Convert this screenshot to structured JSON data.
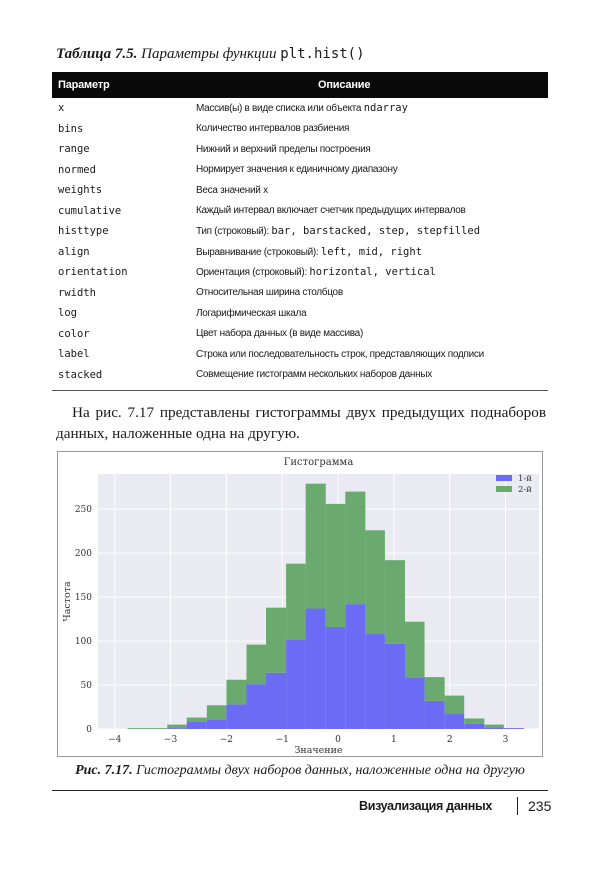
{
  "table": {
    "caption_prefix": "Таблица 7.5.",
    "caption_text": "Параметры функции",
    "caption_code": "plt.hist()",
    "headers": [
      "Параметр",
      "Описание"
    ],
    "rows": [
      {
        "name": "x",
        "desc": "Массив(ы) в виде списка или объекта ",
        "code": "ndarray"
      },
      {
        "name": "bins",
        "desc": "Количество интервалов разбиения",
        "code": ""
      },
      {
        "name": "range",
        "desc": "Нижний и верхний пределы построения",
        "code": ""
      },
      {
        "name": "normed",
        "desc": "Нормирует значения к единичному диапазону",
        "code": ""
      },
      {
        "name": "weights",
        "desc": "Веса значений x",
        "code": ""
      },
      {
        "name": "cumulative",
        "desc": "Каждый интервал включает счетчик предыдущих интервалов",
        "code": ""
      },
      {
        "name": "histtype",
        "desc": "Тип (строковый): ",
        "code": "bar, barstacked, step, stepfilled"
      },
      {
        "name": "align",
        "desc": "Выравнивание (строковый): ",
        "code": "left, mid, right"
      },
      {
        "name": "orientation",
        "desc": "Ориентация (строковый): ",
        "code": "horizontal, vertical"
      },
      {
        "name": "rwidth",
        "desc": "Относительная ширина столбцов",
        "code": ""
      },
      {
        "name": "log",
        "desc": "Логарифмическая шкала",
        "code": ""
      },
      {
        "name": "color",
        "desc": "Цвет набора данных (в виде массива)",
        "code": ""
      },
      {
        "name": "label",
        "desc": "Строка или последовательность строк, представляющих подписи",
        "code": ""
      },
      {
        "name": "stacked",
        "desc": "Совмещение гистограмм нескольких наборов данных",
        "code": ""
      }
    ]
  },
  "paragraph": "На рис. 7.17 представлены гистограммы двух предыдущих поднаборов данных, наложенные одна на другую.",
  "figure": {
    "caption_prefix": "Рис. 7.17.",
    "caption_text": "Гистограммы двух наборов данных, наложенные одна на другую"
  },
  "footer": {
    "section": "Визуализация данных",
    "page": "235"
  },
  "chart_data": {
    "type": "bar",
    "stacked": true,
    "title": "Гистограмма",
    "xlabel": "Значение",
    "ylabel": "Частота",
    "xlim": [
      -4.3,
      3.6
    ],
    "ylim": [
      0,
      290
    ],
    "xticks": [
      -4,
      -3,
      -2,
      -1,
      0,
      1,
      2,
      3
    ],
    "yticks": [
      0,
      50,
      100,
      150,
      200,
      250
    ],
    "grid": true,
    "legend_position": "upper right",
    "bin_edges": [
      -3.77,
      -3.42,
      -3.06,
      -2.71,
      -2.35,
      -2.0,
      -1.64,
      -1.29,
      -0.93,
      -0.58,
      -0.22,
      0.13,
      0.49,
      0.84,
      1.2,
      1.55,
      1.91,
      2.26,
      2.62,
      2.97,
      3.33
    ],
    "series": [
      {
        "name": "1-й",
        "color": "#6b6bf5",
        "values": [
          0,
          0,
          1,
          8,
          11,
          28,
          51,
          64,
          102,
          137,
          116,
          142,
          108,
          97,
          58,
          32,
          17,
          6,
          2,
          1
        ]
      },
      {
        "name": "2-й",
        "color": "#6aaa6e",
        "values": [
          1,
          1,
          4,
          5,
          16,
          28,
          45,
          74,
          86,
          142,
          140,
          128,
          118,
          95,
          64,
          27,
          21,
          6,
          3,
          0
        ]
      }
    ],
    "background": "#eaeaf2"
  }
}
